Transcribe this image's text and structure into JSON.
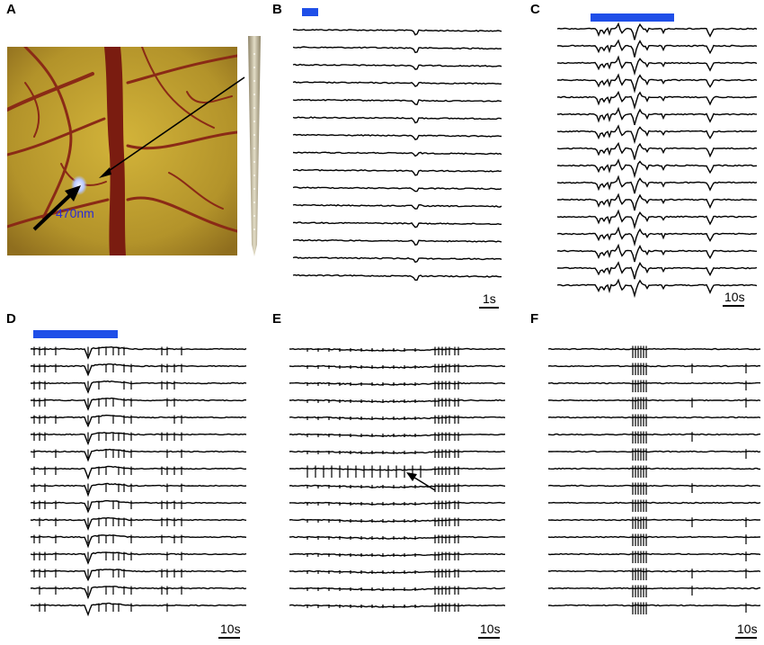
{
  "panels": {
    "A": {
      "letter": "A",
      "wavelength_label": "470nm"
    },
    "B": {
      "letter": "B",
      "scale_label": "1s",
      "trace_count": 15
    },
    "C": {
      "letter": "C",
      "scale_label": "10s",
      "trace_count": 16
    },
    "D": {
      "letter": "D",
      "scale_label": "10s",
      "trace_count": 16
    },
    "E": {
      "letter": "E",
      "scale_label": "10s",
      "trace_count": 16
    },
    "F": {
      "letter": "F",
      "scale_label": "10s",
      "trace_count": 16
    }
  },
  "colors": {
    "stimulus_bar": "#1f4fe8",
    "trace": "#000000",
    "brain_tissue": "#b99a2a",
    "vessel": "#7a1c10",
    "light_spot": "#c9d6ff",
    "wavelength_label": "#2b2bd6"
  }
}
